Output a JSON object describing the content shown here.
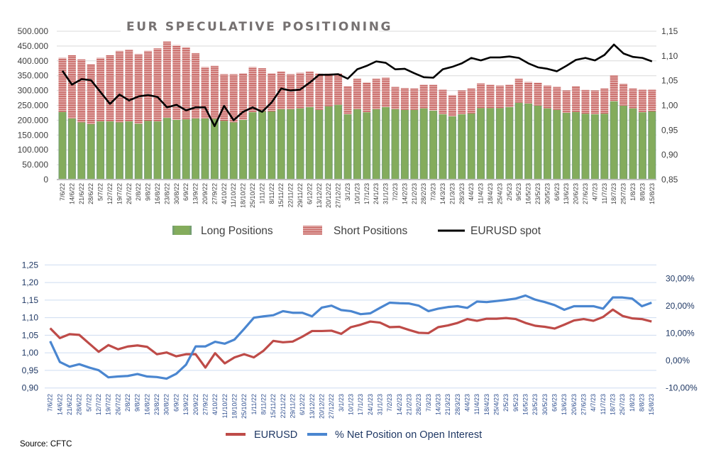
{
  "source": "Source: CFTC",
  "colors": {
    "long": "#84ac5c",
    "short": "#c0504d",
    "spot": "#000000",
    "eurusd_bottom": "#be4b48",
    "net": "#4a86d0"
  },
  "chart_data": [
    {
      "type": "bar",
      "stacked": true,
      "title": "EUR SPECULATIVE POSITIONING",
      "categories": [
        "7/6/22",
        "14/6/22",
        "21/6/22",
        "28/6/22",
        "5/7/22",
        "12/7/22",
        "19/7/22",
        "26/7/22",
        "2/8/22",
        "9/8/22",
        "16/8/22",
        "23/8/22",
        "30/8/22",
        "6/9/22",
        "13/9/22",
        "20/9/22",
        "27/9/22",
        "4/10/22",
        "11/10/22",
        "18/10/22",
        "25/10/22",
        "1/11/22",
        "8/11/22",
        "15/11/22",
        "22/11/22",
        "29/11/22",
        "6/12/22",
        "13/12/22",
        "20/12/22",
        "27/12/22",
        "3/1/23",
        "10/1/23",
        "17/1/23",
        "24/1/23",
        "31/1/23",
        "7/2/23",
        "14/2/23",
        "21/2/23",
        "28/2/23",
        "7/3/23",
        "14/3/23",
        "21/3/23",
        "28/3/23",
        "4/4/23",
        "11/4/23",
        "18/4/23",
        "25/4/23",
        "2/5/23",
        "9/5/23",
        "16/5/23",
        "23/5/23",
        "30/5/23",
        "6/6/23",
        "13/6/23",
        "20/6/23",
        "27/6/23",
        "4/7/23",
        "11/7/23",
        "18/7/23",
        "25/7/23",
        "1/8/23",
        "8/8/23",
        "15/8/23"
      ],
      "series": [
        {
          "name": "Long Positions",
          "type": "bar",
          "axis": "left",
          "values": [
            228000,
            206000,
            193000,
            187000,
            196000,
            196000,
            193000,
            196000,
            188000,
            198000,
            196000,
            208000,
            201000,
            203000,
            206000,
            206000,
            205000,
            198000,
            193000,
            201000,
            227000,
            230000,
            230000,
            237000,
            237000,
            240000,
            244000,
            235000,
            247000,
            252000,
            220000,
            237000,
            227000,
            237000,
            244000,
            237000,
            235000,
            235000,
            240000,
            232000,
            220000,
            213000,
            220000,
            223000,
            241000,
            241000,
            241000,
            244000,
            259000,
            256000,
            249000,
            240000,
            235000,
            225000,
            228000,
            222000,
            220000,
            222000,
            264000,
            249000,
            240000,
            227000,
            230000
          ]
        },
        {
          "name": "Short Positions",
          "type": "bar",
          "axis": "left",
          "values": [
            182000,
            213000,
            212000,
            202000,
            214000,
            223000,
            241000,
            241000,
            235000,
            236000,
            246000,
            258000,
            252000,
            243000,
            221000,
            173000,
            179000,
            157000,
            162000,
            157000,
            152000,
            145000,
            128000,
            128000,
            118000,
            120000,
            121000,
            123000,
            111000,
            106000,
            95000,
            104000,
            101000,
            104000,
            99000,
            75000,
            74000,
            72000,
            79000,
            87000,
            84000,
            72000,
            80000,
            84000,
            83000,
            78000,
            76000,
            75000,
            82000,
            73000,
            78000,
            77000,
            77000,
            75000,
            87000,
            81000,
            80000,
            85000,
            87000,
            74000,
            67000,
            77000,
            74000
          ]
        },
        {
          "name": "EURUSD spot",
          "type": "line",
          "axis": "right",
          "values": [
            1.07,
            1.042,
            1.053,
            1.051,
            1.027,
            1.003,
            1.022,
            1.01,
            1.018,
            1.021,
            1.017,
            0.996,
            1.001,
            0.99,
            0.996,
            0.996,
            0.958,
            0.999,
            0.97,
            0.987,
            0.996,
            0.987,
            1.006,
            1.034,
            1.03,
            1.032,
            1.046,
            1.062,
            1.062,
            1.063,
            1.054,
            1.073,
            1.08,
            1.089,
            1.086,
            1.073,
            1.074,
            1.065,
            1.057,
            1.056,
            1.073,
            1.078,
            1.085,
            1.096,
            1.091,
            1.097,
            1.097,
            1.099,
            1.096,
            1.085,
            1.077,
            1.074,
            1.069,
            1.08,
            1.092,
            1.096,
            1.091,
            1.102,
            1.123,
            1.105,
            1.098,
            1.096,
            1.089
          ]
        }
      ],
      "ylim_left": [
        0,
        500000
      ],
      "ylim_right": [
        0.85,
        1.15
      ],
      "yticks_left": [
        "0",
        "50.000",
        "100.000",
        "150.000",
        "200.000",
        "250.000",
        "300.000",
        "350.000",
        "400.000",
        "450.000",
        "500.000"
      ],
      "yticks_right": [
        "0,85",
        "0,90",
        "0,95",
        "1,00",
        "1,05",
        "1,10",
        "1,15"
      ],
      "grid": true,
      "legend": "bottom"
    },
    {
      "type": "line",
      "title": "",
      "categories": [
        "7/6/22",
        "14/6/22",
        "21/6/22",
        "28/6/22",
        "5/7/22",
        "12/7/22",
        "19/7/22",
        "26/7/22",
        "2/8/22",
        "9/8/22",
        "16/8/22",
        "23/8/22",
        "30/8/22",
        "6/9/22",
        "13/9/22",
        "20/9/22",
        "27/9/22",
        "4/10/22",
        "11/10/22",
        "18/10/22",
        "25/10/22",
        "1/11/22",
        "8/11/22",
        "15/11/22",
        "22/11/22",
        "29/11/22",
        "6/12/22",
        "13/12/22",
        "20/12/22",
        "27/12/22",
        "3/1/23",
        "10/1/23",
        "17/1/23",
        "24/1/23",
        "31/1/23",
        "7/2/23",
        "14/2/23",
        "21/2/23",
        "28/2/23",
        "7/3/23",
        "14/3/23",
        "21/3/23",
        "28/3/23",
        "4/4/23",
        "11/4/23",
        "18/4/23",
        "25/4/23",
        "2/5/23",
        "9/5/23",
        "16/5/23",
        "23/5/23",
        "30/5/23",
        "6/6/23",
        "13/6/23",
        "20/6/23",
        "27/6/23",
        "4/7/23",
        "11/7/23",
        "18/7/23",
        "25/7/23",
        "1/8/23",
        "8/8/23",
        "15/8/23"
      ],
      "series": [
        {
          "name": "EURUSD",
          "axis": "left",
          "values": [
            1.07,
            1.042,
            1.053,
            1.051,
            1.027,
            1.003,
            1.022,
            1.01,
            1.018,
            1.021,
            1.017,
            0.996,
            1.001,
            0.99,
            0.996,
            0.996,
            0.958,
            0.999,
            0.97,
            0.987,
            0.996,
            0.987,
            1.006,
            1.034,
            1.03,
            1.032,
            1.046,
            1.062,
            1.062,
            1.063,
            1.054,
            1.073,
            1.08,
            1.089,
            1.086,
            1.073,
            1.074,
            1.065,
            1.057,
            1.056,
            1.073,
            1.078,
            1.085,
            1.096,
            1.091,
            1.097,
            1.097,
            1.099,
            1.096,
            1.085,
            1.077,
            1.074,
            1.069,
            1.08,
            1.092,
            1.096,
            1.091,
            1.102,
            1.123,
            1.105,
            1.098,
            1.096,
            1.089
          ]
        },
        {
          "name": "% Net Position on Open Interest",
          "axis": "right",
          "values": [
            7.1,
            -0.5,
            -2.2,
            -1.3,
            -2.5,
            -3.5,
            -6.1,
            -5.8,
            -5.6,
            -4.9,
            -5.8,
            -6.0,
            -6.6,
            -4.8,
            -1.5,
            5.2,
            5.2,
            6.9,
            6.2,
            7.7,
            11.6,
            15.7,
            16.2,
            16.6,
            18.1,
            17.5,
            17.5,
            16.2,
            19.4,
            20.1,
            18.5,
            18.1,
            17.0,
            17.3,
            19.3,
            21.2,
            21.0,
            20.9,
            20.1,
            18.1,
            19.0,
            19.6,
            19.9,
            19.3,
            21.6,
            21.4,
            21.8,
            22.2,
            22.7,
            23.8,
            22.3,
            21.4,
            20.3,
            18.6,
            19.9,
            19.9,
            19.9,
            19.0,
            23.1,
            23.1,
            22.7,
            19.9,
            21.2
          ]
        }
      ],
      "ylim_left": [
        0.9,
        1.25
      ],
      "ylim_right": [
        -10,
        35
      ],
      "yticks_left": [
        "0,90",
        "0,95",
        "1,00",
        "1,05",
        "1,10",
        "1,15",
        "1,20",
        "1,25"
      ],
      "yticks_right": [
        "-10,00%",
        "0,00%",
        "10,00%",
        "20,00%",
        "30,00%"
      ],
      "grid": true,
      "legend": "bottom"
    }
  ]
}
